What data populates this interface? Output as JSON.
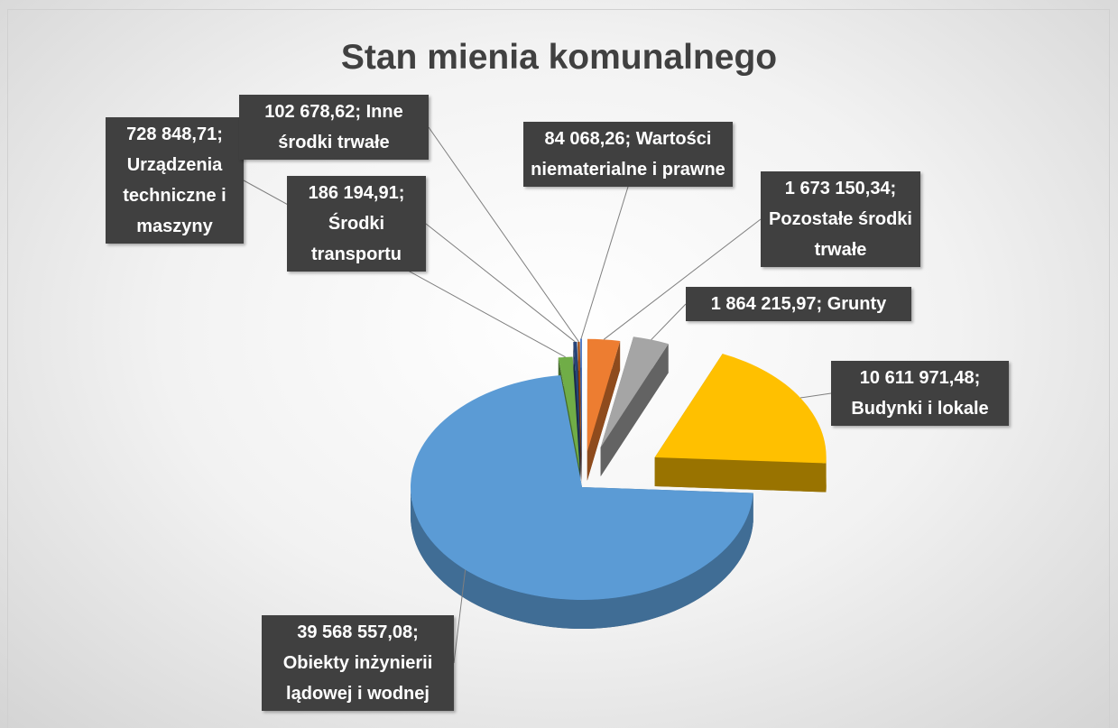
{
  "chart_data": {
    "type": "pie3d",
    "title": "Stan mienia komunalnego",
    "categories": [
      "Wartości niematerialne i prawne",
      "Pozostałe środki trwałe",
      "Grunty",
      "Budynki i lokale",
      "Obiekty inżynierii lądowej i wodnej",
      "Urządzenia techniczne i maszyny",
      "Środki transportu",
      "Inne środki trwałe"
    ],
    "values": [
      84068.26,
      1673150.34,
      1864215.97,
      10611971.48,
      39568557.08,
      728848.71,
      186194.91,
      102678.62
    ],
    "value_labels": [
      "84 068,26;",
      "1 673 150,34;",
      "1 864 215,97;",
      "10 611 971,48;",
      "39 568 557,08;",
      "728 848,71;",
      "186 194,91;",
      "102 678,62;"
    ],
    "colors": [
      "#4472c4",
      "#ed7d31",
      "#a5a5a5",
      "#ffc000",
      "#5b9bd5",
      "#70ad47",
      "#264478",
      "#9e480e"
    ]
  }
}
